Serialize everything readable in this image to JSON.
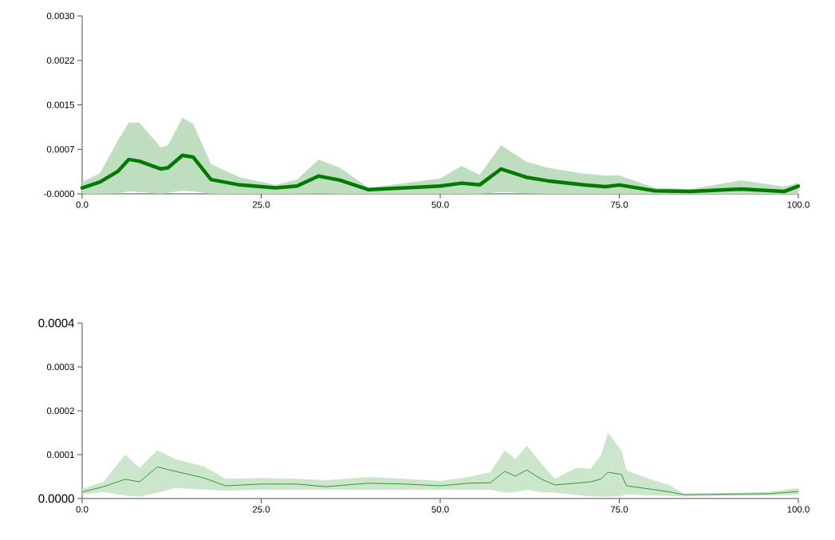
{
  "chart_data": [
    {
      "type": "line",
      "xlim": [
        0,
        100
      ],
      "ylim": [
        0,
        0.003
      ],
      "xticks": [
        {
          "value": 0,
          "label": "0.0"
        },
        {
          "value": 25,
          "label": "25.0"
        },
        {
          "value": 50,
          "label": "50.0"
        },
        {
          "value": 75,
          "label": "75.0"
        },
        {
          "value": 100,
          "label": "100.0"
        }
      ],
      "yticks": [
        {
          "value": 0,
          "label": "-0.0000"
        },
        {
          "value": 0.00075,
          "label": "0.0007"
        },
        {
          "value": 0.0015,
          "label": "0.0015"
        },
        {
          "value": 0.00225,
          "label": "0.0022"
        },
        {
          "value": 0.003,
          "label": "0.0030"
        }
      ],
      "x": [
        0,
        2.5,
        5,
        6.5,
        8,
        11,
        12,
        14,
        15.5,
        18,
        22,
        27,
        30,
        33,
        36,
        40,
        45,
        50,
        53,
        55.5,
        58.5,
        62,
        65,
        70,
        73,
        75,
        80,
        85,
        92,
        98,
        100
      ],
      "series": [
        {
          "color": "#007a00",
          "values": [
            0.0001,
            0.0002,
            0.00038,
            0.00058,
            0.00055,
            0.00042,
            0.00044,
            0.00065,
            0.00062,
            0.00024,
            0.00015,
            0.0001,
            0.00013,
            0.0003,
            0.00023,
            7e-05,
            0.0001,
            0.00013,
            0.00018,
            0.00015,
            0.00042,
            0.00028,
            0.00022,
            0.00015,
            0.00012,
            0.00015,
            5e-05,
            4e-05,
            8e-05,
            4e-05,
            0.00013
          ],
          "upper": [
            0.0002,
            0.00035,
            0.0009,
            0.0012,
            0.0012,
            0.00078,
            0.00082,
            0.00128,
            0.00118,
            0.0005,
            0.00028,
            0.00015,
            0.00024,
            0.00058,
            0.00044,
            0.0001,
            0.00018,
            0.00026,
            0.00047,
            0.00032,
            0.00082,
            0.00054,
            0.00044,
            0.00034,
            0.00031,
            0.00031,
            0.0001,
            8e-05,
            0.00023,
            0.00012,
            0.00019
          ],
          "lower": [
            0,
            0,
            1e-05,
            4e-05,
            3e-05,
            0,
            2e-05,
            5e-05,
            4e-05,
            0,
            0,
            0,
            0,
            1e-05,
            0,
            0,
            0,
            0,
            0,
            0,
            3e-05,
            1e-05,
            0,
            0,
            0,
            0,
            0,
            0,
            0,
            0,
            0
          ]
        }
      ]
    },
    {
      "type": "line",
      "xlim": [
        0,
        100
      ],
      "ylim": [
        0,
        0.0004
      ],
      "xticks": [
        {
          "value": 0,
          "label": "0.0"
        },
        {
          "value": 25,
          "label": "25.0"
        },
        {
          "value": 50,
          "label": "50.0"
        },
        {
          "value": 75,
          "label": "75.0"
        },
        {
          "value": 100,
          "label": "100.0"
        }
      ],
      "yticks": [
        {
          "value": 0,
          "label": "0.0000"
        },
        {
          "value": 0.0001,
          "label": "0.0001"
        },
        {
          "value": 0.0002,
          "label": "0.0002"
        },
        {
          "value": 0.0003,
          "label": "0.0003"
        },
        {
          "value": 0.0004,
          "label": "0.0004"
        }
      ],
      "x": [
        0,
        3,
        6,
        8,
        10.5,
        13,
        17,
        20,
        25,
        30,
        34,
        40,
        45,
        50,
        54,
        57,
        59,
        60.5,
        62.1,
        64,
        66,
        69,
        71,
        72.5,
        73.4,
        75.3,
        76,
        80,
        82,
        84,
        96,
        100
      ],
      "series": [
        {
          "color": "#2e9a2e",
          "values": [
            1.5e-05,
            2.7e-05,
            4.4e-05,
            3.8e-05,
            7.2e-05,
            6.2e-05,
            4.7e-05,
            2.9e-05,
            3.3e-05,
            3.3e-05,
            2.7e-05,
            3.5e-05,
            3.3e-05,
            2.9e-05,
            3.5e-05,
            3.6e-05,
            6.2e-05,
            5.1e-05,
            6.5e-05,
            4.5e-05,
            3.1e-05,
            3.5e-05,
            3.8e-05,
            4.5e-05,
            6e-05,
            5.5e-05,
            2.9e-05,
            2e-05,
            1.5e-05,
            9e-06,
            1.1e-05,
            1.6e-05
          ],
          "upper": [
            2.2e-05,
            3.8e-05,
            0.0001,
            7e-05,
            0.00011,
            9e-05,
            7.3e-05,
            4.5e-05,
            4.7e-05,
            4.5e-05,
            4.2e-05,
            4.9e-05,
            4.5e-05,
            4e-05,
            4.9e-05,
            6e-05,
            0.00011,
            9e-05,
            0.00012,
            8.2e-05,
            4.5e-05,
            7e-05,
            6.8e-05,
            0.0001,
            0.00015,
            0.00011,
            6.4e-05,
            4e-05,
            3.1e-05,
            1.1e-05,
            1.5e-05,
            2.4e-05
          ],
          "lower": [
            9e-06,
            1.5e-05,
            7e-06,
            4e-06,
            1.3e-05,
            2.4e-05,
            2e-05,
            1.8e-05,
            2e-05,
            2e-05,
            2e-05,
            2e-05,
            2e-05,
            2e-05,
            2e-05,
            2e-05,
            1.3e-05,
            1.5e-05,
            2e-05,
            1.5e-05,
            1.3e-05,
            8e-06,
            5e-06,
            4e-06,
            4e-06,
            6e-06,
            9e-06,
            7e-06,
            6e-06,
            5e-06,
            7e-06,
            9e-06
          ]
        }
      ]
    }
  ]
}
